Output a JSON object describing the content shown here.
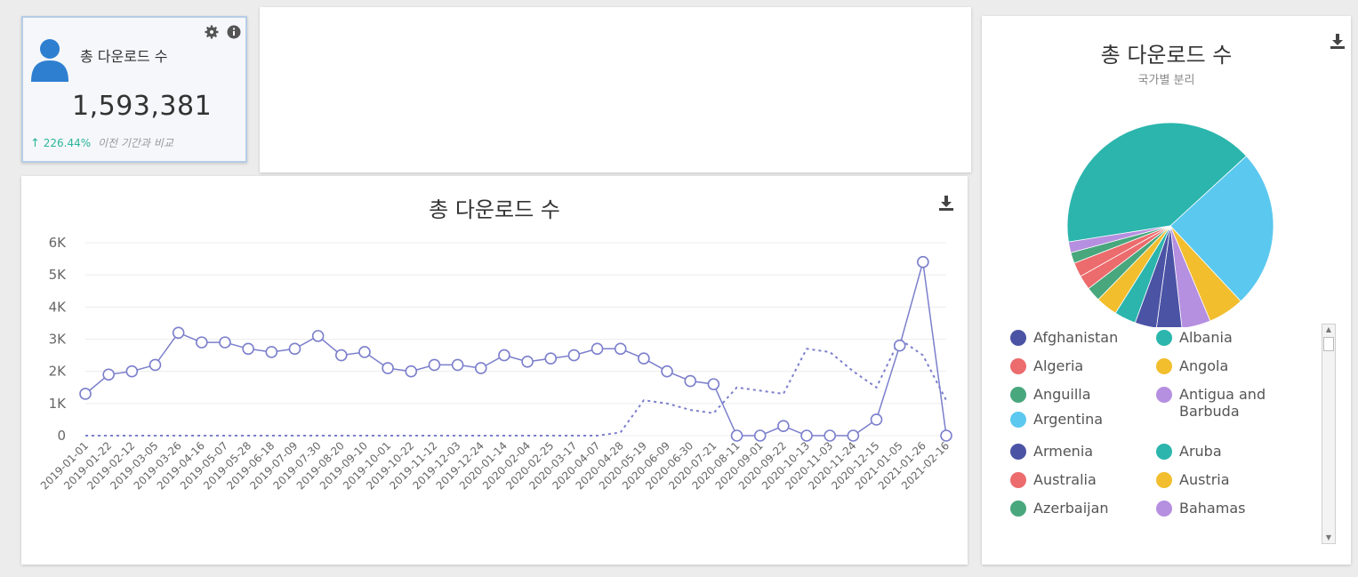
{
  "kpi": {
    "title": "총 다운로드 수",
    "value": "1,593,381",
    "delta": "226.44%",
    "compare_text": "이전 기간과 비교"
  },
  "line_chart": {
    "title": "총 다운로드 수",
    "y_ticks": [
      "6K",
      "5K",
      "4K",
      "3K",
      "2K",
      "1K",
      "0"
    ],
    "x_ticks": [
      "2019-01-01",
      "2019-01-22",
      "2019-02-12",
      "2019-03-05",
      "2019-03-26",
      "2019-04-16",
      "2019-05-07",
      "2019-05-28",
      "2019-06-18",
      "2019-07-09",
      "2019-07-30",
      "2019-08-20",
      "2019-09-10",
      "2019-10-01",
      "2019-10-22",
      "2019-11-12",
      "2019-12-03",
      "2019-12-24",
      "2020-01-14",
      "2020-02-04",
      "2020-02-25",
      "2020-03-17",
      "2020-04-07",
      "2020-04-28",
      "2020-05-19",
      "2020-06-09",
      "2020-06-30",
      "2020-07-21",
      "2020-08-11",
      "2020-09-01",
      "2020-09-22",
      "2020-10-13",
      "2020-11-03",
      "2020-11-24",
      "2020-12-15",
      "2021-01-05",
      "2021-01-26",
      "2021-02-16"
    ]
  },
  "pie_chart": {
    "title": "총 다운로드 수",
    "subtitle": "국가별 분리"
  },
  "chart_data": [
    {
      "type": "line",
      "title": "총 다운로드 수",
      "x": [
        "2019-01-01",
        "2019-01-22",
        "2019-02-12",
        "2019-03-05",
        "2019-03-26",
        "2019-04-16",
        "2019-05-07",
        "2019-05-28",
        "2019-06-18",
        "2019-07-09",
        "2019-07-30",
        "2019-08-20",
        "2019-09-10",
        "2019-10-01",
        "2019-10-22",
        "2019-11-12",
        "2019-12-03",
        "2019-12-24",
        "2020-01-14",
        "2020-02-04",
        "2020-02-25",
        "2020-03-17",
        "2020-04-07",
        "2020-04-28",
        "2020-05-19",
        "2020-06-09",
        "2020-06-30",
        "2020-07-21",
        "2020-08-11",
        "2020-09-01",
        "2020-09-22",
        "2020-10-13",
        "2020-11-03",
        "2020-11-24",
        "2020-12-15",
        "2021-01-05",
        "2021-01-26",
        "2021-02-16"
      ],
      "ylim": [
        0,
        6000
      ],
      "series": [
        {
          "style": "markers",
          "color": "#7b7fcb",
          "values": [
            1300,
            1900,
            2000,
            2200,
            3200,
            2900,
            2900,
            2700,
            2600,
            2700,
            3100,
            2500,
            2600,
            2100,
            2000,
            2200,
            2200,
            2100,
            2500,
            2300,
            2400,
            2500,
            2700,
            2700,
            2400,
            2000,
            1700,
            1600,
            0,
            0,
            300,
            0,
            0,
            0,
            500,
            2800,
            5400,
            0
          ]
        },
        {
          "style": "dashed",
          "color": "#7b7fcb",
          "values": [
            0,
            0,
            0,
            0,
            0,
            0,
            0,
            0,
            0,
            0,
            0,
            0,
            0,
            0,
            0,
            0,
            0,
            0,
            0,
            0,
            0,
            0,
            0,
            100,
            1100,
            1000,
            800,
            700,
            1500,
            1400,
            1300,
            2700,
            2600,
            2000,
            1500,
            3000,
            2500,
            1100
          ]
        }
      ]
    },
    {
      "type": "pie",
      "title": "총 다운로드 수",
      "subtitle": "국가별 분리",
      "slices": [
        {
          "label": "Albania",
          "value": 36,
          "color": "#2bb5ad"
        },
        {
          "label": "Argentina",
          "value": 22,
          "color": "#5bc8ef"
        },
        {
          "label": "Austria",
          "value": 5,
          "color": "#f2be2e"
        },
        {
          "label": "Antigua and Barbuda",
          "value": 4,
          "color": "#b58fe0"
        },
        {
          "label": "Armenia",
          "value": 3.5,
          "color": "#4b53a5"
        },
        {
          "label": "Afghanistan",
          "value": 3,
          "color": "#4b53a5"
        },
        {
          "label": "Aruba",
          "value": 3,
          "color": "#2bb5ad"
        },
        {
          "label": "Angola",
          "value": 3,
          "color": "#f2be2e"
        },
        {
          "label": "Anguilla",
          "value": 2,
          "color": "#48a77d"
        },
        {
          "label": "Algeria",
          "value": 2,
          "color": "#ec6b6d"
        },
        {
          "label": "Australia",
          "value": 2,
          "color": "#ec6b6d"
        },
        {
          "label": "Azerbaijan",
          "value": 1.5,
          "color": "#48a77d"
        },
        {
          "label": "Bahamas",
          "value": 1.5,
          "color": "#b58fe0"
        }
      ]
    }
  ],
  "legend": {
    "items": [
      {
        "label": "Afghanistan",
        "color": "#4b53a5"
      },
      {
        "label": "Albania",
        "color": "#2bb5ad"
      },
      {
        "label": "Algeria",
        "color": "#ec6b6d"
      },
      {
        "label": "Angola",
        "color": "#f2be2e"
      },
      {
        "label": "Anguilla",
        "color": "#48a77d"
      },
      {
        "label": "Antigua and Barbuda",
        "color": "#b58fe0"
      },
      {
        "label": "Argentina",
        "color": "#5bc8ef"
      },
      {
        "label": "Armenia",
        "color": "#4b53a5"
      },
      {
        "label": "Aruba",
        "color": "#2bb5ad"
      },
      {
        "label": "Australia",
        "color": "#ec6b6d"
      },
      {
        "label": "Austria",
        "color": "#f2be2e"
      },
      {
        "label": "Azerbaijan",
        "color": "#48a77d"
      },
      {
        "label": "Bahamas",
        "color": "#b58fe0"
      }
    ]
  },
  "icons": {
    "user": "user-icon",
    "settings": "gear-icon",
    "info": "info-icon",
    "download": "download-icon"
  }
}
